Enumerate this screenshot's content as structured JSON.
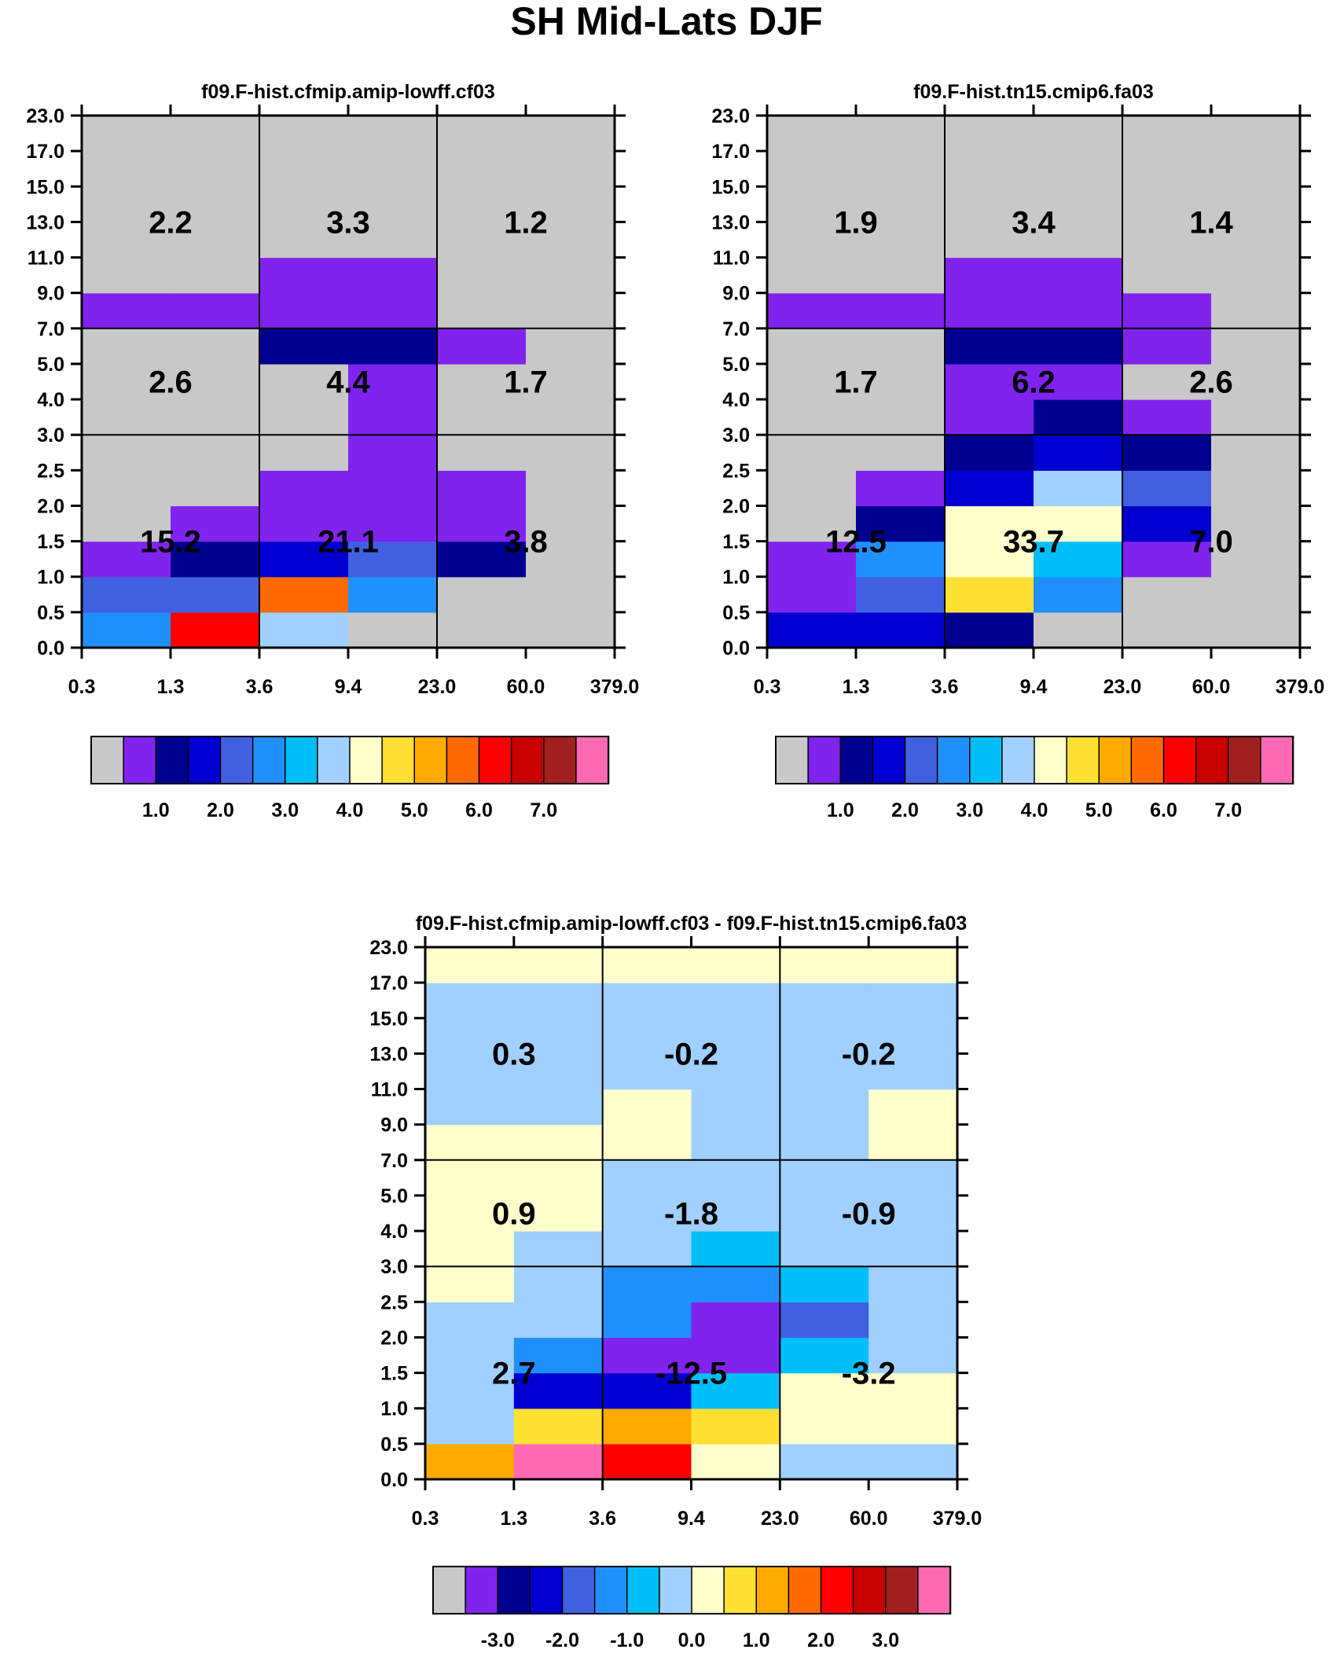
{
  "page_title": "SH Mid-Lats DJF",
  "chart_data": [
    {
      "type": "heatmap",
      "id": "panel-1",
      "title": "f09.F-hist.cfmip.amip-lowff.cf03",
      "x_ticks": [
        "0.3",
        "1.3",
        "3.6",
        "9.4",
        "23.0",
        "60.0",
        "379.0"
      ],
      "y_ticks": [
        "0.0",
        "0.5",
        "1.0",
        "1.5",
        "2.0",
        "2.5",
        "3.0",
        "4.0",
        "5.0",
        "7.0",
        "9.0",
        "11.0",
        "13.0",
        "15.0",
        "17.0",
        "23.0"
      ],
      "grid_note": "rows listed from bottom (0.0-0.5) to top (17.0-23.0); values are colour-bin indices into the palette",
      "cells": [
        [
          5,
          12,
          7,
          0,
          0,
          0
        ],
        [
          4,
          4,
          11,
          5,
          0,
          0
        ],
        [
          1,
          2,
          3,
          4,
          2,
          0
        ],
        [
          0,
          1,
          1,
          1,
          1,
          0
        ],
        [
          0,
          0,
          1,
          1,
          1,
          0
        ],
        [
          0,
          0,
          0,
          1,
          0,
          0
        ],
        [
          0,
          0,
          0,
          1,
          0,
          0
        ],
        [
          0,
          0,
          0,
          1,
          0,
          0
        ],
        [
          0,
          0,
          2,
          2,
          1,
          0
        ],
        [
          1,
          1,
          1,
          1,
          0,
          0
        ],
        [
          0,
          0,
          1,
          1,
          0,
          0
        ],
        [
          0,
          0,
          0,
          0,
          0,
          0
        ],
        [
          0,
          0,
          0,
          0,
          0,
          0
        ],
        [
          0,
          0,
          0,
          0,
          0,
          0
        ],
        [
          0,
          0,
          0,
          0,
          0,
          0
        ]
      ],
      "box_values": [
        [
          "15.2",
          "21.1",
          "3.8"
        ],
        [
          "2.6",
          "4.4",
          "1.7"
        ],
        [
          "2.2",
          "3.3",
          "1.2"
        ]
      ],
      "colorbar": {
        "labels": [
          "1.0",
          "2.0",
          "3.0",
          "4.0",
          "5.0",
          "6.0",
          "7.0"
        ]
      }
    },
    {
      "type": "heatmap",
      "id": "panel-2",
      "title": "f09.F-hist.tn15.cmip6.fa03",
      "x_ticks": [
        "0.3",
        "1.3",
        "3.6",
        "9.4",
        "23.0",
        "60.0",
        "379.0"
      ],
      "y_ticks": [
        "0.0",
        "0.5",
        "1.0",
        "1.5",
        "2.0",
        "2.5",
        "3.0",
        "4.0",
        "5.0",
        "7.0",
        "9.0",
        "11.0",
        "13.0",
        "15.0",
        "17.0",
        "23.0"
      ],
      "cells": [
        [
          3,
          3,
          2,
          0,
          0,
          0
        ],
        [
          1,
          4,
          9,
          5,
          0,
          0
        ],
        [
          1,
          5,
          8,
          6,
          1,
          0
        ],
        [
          0,
          2,
          8,
          8,
          3,
          0
        ],
        [
          0,
          1,
          3,
          7,
          4,
          0
        ],
        [
          0,
          0,
          2,
          3,
          2,
          0
        ],
        [
          0,
          0,
          1,
          2,
          1,
          0
        ],
        [
          0,
          0,
          1,
          1,
          0,
          0
        ],
        [
          0,
          0,
          2,
          2,
          1,
          0
        ],
        [
          1,
          1,
          1,
          1,
          1,
          0
        ],
        [
          0,
          0,
          1,
          1,
          0,
          0
        ],
        [
          0,
          0,
          0,
          0,
          0,
          0
        ],
        [
          0,
          0,
          0,
          0,
          0,
          0
        ],
        [
          0,
          0,
          0,
          0,
          0,
          0
        ],
        [
          0,
          0,
          0,
          0,
          0,
          0
        ]
      ],
      "box_values": [
        [
          "12.5",
          "33.7",
          "7.0"
        ],
        [
          "1.7",
          "6.2",
          "2.6"
        ],
        [
          "1.9",
          "3.4",
          "1.4"
        ]
      ],
      "colorbar": {
        "labels": [
          "1.0",
          "2.0",
          "3.0",
          "4.0",
          "5.0",
          "6.0",
          "7.0"
        ]
      }
    },
    {
      "type": "heatmap",
      "id": "panel-diff",
      "title": "f09.F-hist.cfmip.amip-lowff.cf03 - f09.F-hist.tn15.cmip6.fa03",
      "x_ticks": [
        "0.3",
        "1.3",
        "3.6",
        "9.4",
        "23.0",
        "60.0",
        "379.0"
      ],
      "y_ticks": [
        "0.0",
        "0.5",
        "1.0",
        "1.5",
        "2.0",
        "2.5",
        "3.0",
        "4.0",
        "5.0",
        "7.0",
        "9.0",
        "11.0",
        "13.0",
        "15.0",
        "17.0",
        "23.0"
      ],
      "cells": [
        [
          10,
          15,
          12,
          8,
          7,
          7
        ],
        [
          7,
          9,
          10,
          9,
          8,
          8
        ],
        [
          7,
          3,
          3,
          6,
          8,
          8
        ],
        [
          7,
          5,
          1,
          1,
          6,
          7
        ],
        [
          7,
          7,
          5,
          1,
          4,
          7
        ],
        [
          8,
          7,
          5,
          5,
          6,
          7
        ],
        [
          8,
          7,
          7,
          6,
          7,
          7
        ],
        [
          8,
          8,
          7,
          7,
          7,
          7
        ],
        [
          8,
          8,
          7,
          7,
          7,
          7
        ],
        [
          8,
          8,
          8,
          7,
          7,
          8
        ],
        [
          7,
          7,
          8,
          7,
          7,
          8
        ],
        [
          7,
          7,
          7,
          7,
          7,
          7
        ],
        [
          7,
          7,
          7,
          7,
          7,
          7
        ],
        [
          7,
          7,
          7,
          7,
          7,
          7
        ],
        [
          8,
          8,
          8,
          8,
          8,
          8
        ]
      ],
      "box_values": [
        [
          "2.7",
          "-12.5",
          "-3.2"
        ],
        [
          "0.9",
          "-1.8",
          "-0.9"
        ],
        [
          "0.3",
          "-0.2",
          "-0.2"
        ]
      ],
      "colorbar": {
        "labels": [
          "-3.0",
          "-2.0",
          "-1.0",
          "0.0",
          "1.0",
          "2.0",
          "3.0"
        ]
      }
    }
  ],
  "palette": [
    "#c8c8c8",
    "#8023ee",
    "#000090",
    "#0000d0",
    "#4060e0",
    "#2090ff",
    "#00bff8",
    "#a0d0ff",
    "#ffffcc",
    "#ffe033",
    "#ffaa00",
    "#ff6a00",
    "#ff0000",
    "#c80000",
    "#a02020",
    "#ff69b4"
  ]
}
